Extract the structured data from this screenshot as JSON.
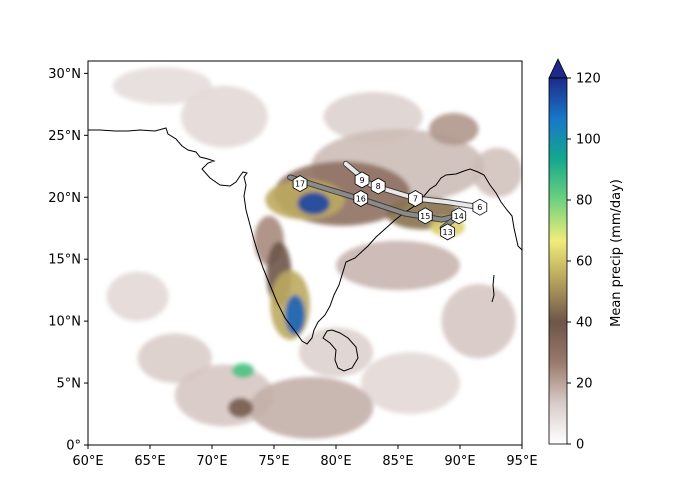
{
  "chart_data": {
    "type": "heatmap",
    "title": "",
    "xlabel": "",
    "ylabel": "",
    "xlim": [
      60,
      95
    ],
    "ylim": [
      0,
      31
    ],
    "x_ticks": [
      {
        "value": 60,
        "label": "60°E"
      },
      {
        "value": 65,
        "label": "65°E"
      },
      {
        "value": 70,
        "label": "70°E"
      },
      {
        "value": 75,
        "label": "75°E"
      },
      {
        "value": 80,
        "label": "80°E"
      },
      {
        "value": 85,
        "label": "85°E"
      },
      {
        "value": 90,
        "label": "90°E"
      },
      {
        "value": 95,
        "label": "95°E"
      }
    ],
    "y_ticks": [
      {
        "value": 0,
        "label": "0°"
      },
      {
        "value": 5,
        "label": "5°N"
      },
      {
        "value": 10,
        "label": "10°N"
      },
      {
        "value": 15,
        "label": "15°N"
      },
      {
        "value": 20,
        "label": "20°N"
      },
      {
        "value": 25,
        "label": "25°N"
      },
      {
        "value": 30,
        "label": "30°N"
      }
    ],
    "colorbar": {
      "label": "Mean precip (mm/day)",
      "min": 0,
      "max": 120,
      "extend": "max",
      "ticks": [
        {
          "value": 0,
          "label": "0"
        },
        {
          "value": 20,
          "label": "20"
        },
        {
          "value": 40,
          "label": "40"
        },
        {
          "value": 60,
          "label": "60"
        },
        {
          "value": 80,
          "label": "80"
        },
        {
          "value": 100,
          "label": "100"
        },
        {
          "value": 120,
          "label": "120"
        }
      ],
      "colors": [
        "#ffffff",
        "#d9ccc8",
        "#9a7a6c",
        "#6e5548",
        "#b4a15c",
        "#f2ec7a",
        "#6ed27e",
        "#14a88c",
        "#1877c8",
        "#1d2a8c"
      ]
    },
    "precip_blobs": [
      {
        "lon": 78.2,
        "lat": 19.5,
        "rlon": 1.3,
        "rlat": 0.9,
        "value": 115
      },
      {
        "lon": 77.5,
        "lat": 19.8,
        "rlon": 3.2,
        "rlat": 1.6,
        "value": 55
      },
      {
        "lon": 80.5,
        "lat": 20.3,
        "rlon": 5.5,
        "rlat": 2.6,
        "value": 30
      },
      {
        "lon": 87.0,
        "lat": 18.7,
        "rlon": 3.0,
        "rlat": 1.3,
        "value": 45
      },
      {
        "lon": 89.0,
        "lat": 17.6,
        "rlon": 1.4,
        "rlat": 0.8,
        "value": 62
      },
      {
        "lon": 85.0,
        "lat": 22.5,
        "rlon": 7.0,
        "rlat": 3.0,
        "value": 16
      },
      {
        "lon": 89.5,
        "lat": 25.5,
        "rlon": 2.0,
        "rlat": 1.3,
        "value": 22
      },
      {
        "lon": 83.0,
        "lat": 26.5,
        "rlon": 4.0,
        "rlat": 2.0,
        "value": 12
      },
      {
        "lon": 76.7,
        "lat": 10.5,
        "rlon": 0.8,
        "rlat": 1.6,
        "value": 110
      },
      {
        "lon": 76.3,
        "lat": 11.3,
        "rlon": 1.6,
        "rlat": 2.8,
        "value": 55
      },
      {
        "lon": 75.4,
        "lat": 13.8,
        "rlon": 1.0,
        "rlat": 2.6,
        "value": 40
      },
      {
        "lon": 74.6,
        "lat": 16.5,
        "rlon": 1.2,
        "rlat": 2.0,
        "value": 24
      },
      {
        "lon": 72.5,
        "lat": 6.0,
        "rlon": 0.9,
        "rlat": 0.6,
        "value": 85
      },
      {
        "lon": 72.3,
        "lat": 3.0,
        "rlon": 1.0,
        "rlat": 0.8,
        "value": 38
      },
      {
        "lon": 71.0,
        "lat": 4.0,
        "rlon": 4.0,
        "rlat": 2.5,
        "value": 14
      },
      {
        "lon": 78.0,
        "lat": 3.0,
        "rlon": 5.0,
        "rlat": 2.5,
        "value": 18
      },
      {
        "lon": 85.0,
        "lat": 14.5,
        "rlon": 5.0,
        "rlat": 2.0,
        "value": 17
      },
      {
        "lon": 91.5,
        "lat": 10.0,
        "rlon": 3.0,
        "rlat": 3.0,
        "value": 14
      },
      {
        "lon": 67.0,
        "lat": 7.0,
        "rlon": 3.0,
        "rlat": 2.0,
        "value": 13
      },
      {
        "lon": 64.0,
        "lat": 12.0,
        "rlon": 2.5,
        "rlat": 2.0,
        "value": 10
      },
      {
        "lon": 71.0,
        "lat": 26.5,
        "rlon": 3.5,
        "rlat": 2.5,
        "value": 10
      },
      {
        "lon": 66.0,
        "lat": 29.0,
        "rlon": 4.0,
        "rlat": 1.5,
        "value": 9
      },
      {
        "lon": 93.0,
        "lat": 22.0,
        "rlon": 2.0,
        "rlat": 2.0,
        "value": 15
      },
      {
        "lon": 80.0,
        "lat": 7.5,
        "rlon": 3.0,
        "rlat": 2.0,
        "value": 12
      },
      {
        "lon": 86.0,
        "lat": 5.0,
        "rlon": 4.0,
        "rlat": 2.5,
        "value": 10
      }
    ],
    "track_markers": [
      {
        "label": "17",
        "lon": 77.1,
        "lat": 21.1
      },
      {
        "label": "9",
        "lon": 82.1,
        "lat": 21.4
      },
      {
        "label": "8",
        "lon": 83.4,
        "lat": 20.9
      },
      {
        "label": "16",
        "lon": 82.0,
        "lat": 19.9
      },
      {
        "label": "7",
        "lon": 86.4,
        "lat": 19.9
      },
      {
        "label": "6",
        "lon": 91.6,
        "lat": 19.2
      },
      {
        "label": "15",
        "lon": 87.2,
        "lat": 18.5
      },
      {
        "label": "14",
        "lon": 89.9,
        "lat": 18.5
      },
      {
        "label": "13",
        "lon": 89.0,
        "lat": 17.2
      }
    ],
    "track_bands": [
      {
        "points": [
          [
            76.3,
            21.6
          ],
          [
            79.5,
            20.6
          ],
          [
            82.5,
            19.7
          ],
          [
            85.5,
            18.7
          ],
          [
            88.5,
            18.2
          ],
          [
            89.9,
            18.5
          ]
        ]
      },
      {
        "points": [
          [
            80.8,
            22.7
          ],
          [
            82.8,
            21.0
          ],
          [
            86.4,
            19.9
          ],
          [
            89.0,
            19.6
          ],
          [
            91.6,
            19.2
          ]
        ]
      },
      {
        "points": [
          [
            88.6,
            17.5
          ],
          [
            89.6,
            18.3
          ]
        ]
      }
    ]
  }
}
